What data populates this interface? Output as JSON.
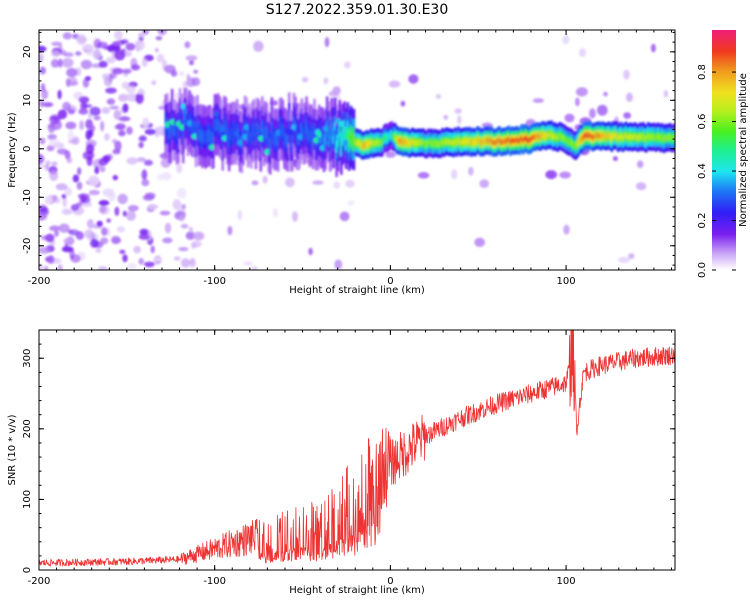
{
  "figure_title": "S127.2022.359.01.30.E30",
  "chart_data": [
    {
      "type": "heatmap",
      "title": "S127.2022.359.01.30.E30",
      "xlabel": "Height of straight line (km)",
      "ylabel": "Frequency (Hz)",
      "xlim": [
        -200,
        162
      ],
      "ylim": [
        -25,
        24.5
      ],
      "xticks": [
        -200,
        -100,
        0,
        100
      ],
      "yticks": [
        -20,
        -10,
        0,
        10,
        20
      ],
      "colorbar": {
        "label": "Normalized spectral amplitude",
        "range": [
          0,
          0.97
        ],
        "ticks": [
          0.0,
          0.2,
          0.4,
          0.6,
          0.8
        ]
      },
      "series": [
        {
          "name": "signal frequency ridge",
          "x": [
            -125,
            -110,
            -90,
            -70,
            -50,
            -35,
            -25,
            -15,
            -5,
            0,
            5,
            20,
            40,
            60,
            80,
            90,
            100,
            105,
            110,
            130,
            162
          ],
          "y": [
            5,
            4,
            3,
            2.5,
            4,
            3,
            1.5,
            0.8,
            1.5,
            3,
            1.5,
            1,
            1.5,
            1.5,
            2,
            3,
            2,
            0.5,
            2.5,
            2.5,
            2.2
          ],
          "peak_amplitude": [
            0.3,
            0.3,
            0.3,
            0.3,
            0.3,
            0.35,
            0.5,
            0.8,
            0.6,
            0.4,
            0.85,
            0.6,
            0.7,
            0.85,
            0.9,
            0.7,
            0.6,
            0.6,
            0.9,
            0.7,
            0.6
          ]
        }
      ]
    },
    {
      "type": "line",
      "xlabel": "Height of straight line (km)",
      "ylabel": "SNR (10 * v/v)",
      "xlim": [
        -200,
        162
      ],
      "ylim": [
        0,
        340
      ],
      "xticks": [
        -200,
        -100,
        0,
        100
      ],
      "yticks": [
        0,
        100,
        200,
        300
      ],
      "series": [
        {
          "name": "SNR",
          "color": "#ee3333",
          "x": [
            -200,
            -150,
            -120,
            -100,
            -80,
            -60,
            -50,
            -40,
            -30,
            -20,
            -10,
            0,
            10,
            20,
            40,
            60,
            80,
            100,
            104,
            106,
            110,
            120,
            140,
            162
          ],
          "y": [
            10,
            12,
            15,
            30,
            45,
            55,
            65,
            60,
            90,
            100,
            140,
            150,
            170,
            190,
            215,
            235,
            250,
            265,
            310,
            200,
            280,
            290,
            300,
            305
          ]
        }
      ]
    }
  ]
}
